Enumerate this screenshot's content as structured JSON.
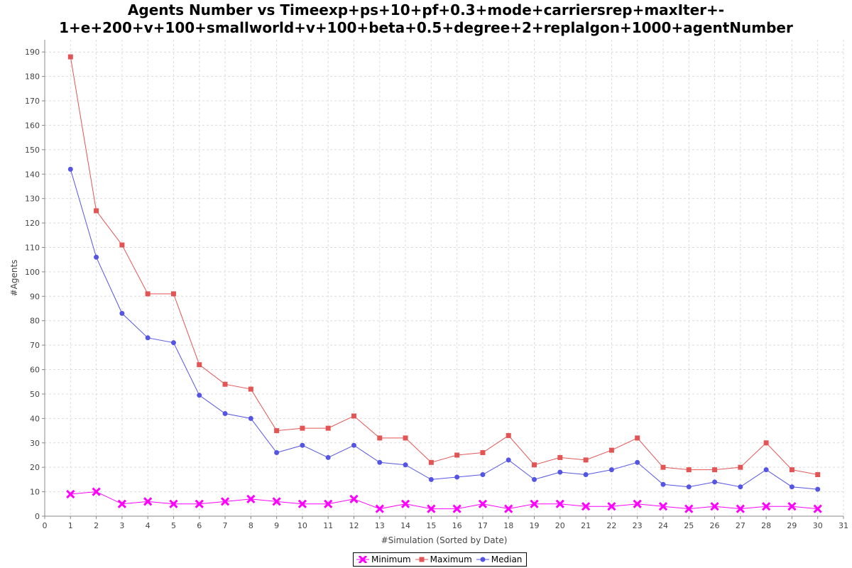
{
  "chart_data": {
    "type": "line",
    "title_line1": "Agents Number vs Timeexp+ps+10+pf+0.3+mode+carriersrep+maxIter+-",
    "title_line2": "1+e+200+v+100+smallworld+v+100+beta+0.5+degree+2+replalgon+1000+agentNumber",
    "xlabel": "#Simulation (Sorted by Date)",
    "ylabel": "#Agents",
    "xlim": [
      0,
      31
    ],
    "ylim": [
      0,
      195
    ],
    "xticks": [
      0,
      1,
      2,
      3,
      4,
      5,
      6,
      7,
      8,
      9,
      10,
      11,
      12,
      13,
      14,
      15,
      16,
      17,
      18,
      19,
      20,
      21,
      22,
      23,
      24,
      25,
      26,
      27,
      28,
      29,
      30,
      31
    ],
    "yticks": [
      0,
      10,
      20,
      30,
      40,
      50,
      60,
      70,
      80,
      90,
      100,
      110,
      120,
      130,
      140,
      150,
      160,
      170,
      180,
      190
    ],
    "grid": true,
    "legend_position": "bottom",
    "x": [
      1,
      2,
      3,
      4,
      5,
      6,
      7,
      8,
      9,
      10,
      11,
      12,
      13,
      14,
      15,
      16,
      17,
      18,
      19,
      20,
      21,
      22,
      23,
      24,
      25,
      26,
      27,
      28,
      29,
      30
    ],
    "series": [
      {
        "name": "Minimum",
        "color": "#ff00ff",
        "marker": "cross",
        "values": [
          9,
          10,
          5,
          6,
          5,
          5,
          6,
          7,
          6,
          5,
          5,
          7,
          3,
          5,
          3,
          3,
          5,
          3,
          5,
          5,
          4,
          4,
          5,
          4,
          3,
          4,
          3,
          4,
          4,
          3
        ]
      },
      {
        "name": "Maximum",
        "color": "#e35555",
        "marker": "square",
        "values": [
          188,
          125,
          111,
          91,
          91,
          62,
          54,
          52,
          35,
          36,
          36,
          41,
          32,
          32,
          22,
          25,
          26,
          33,
          21,
          24,
          23,
          27,
          32,
          20,
          19,
          19,
          20,
          30,
          19,
          17
        ]
      },
      {
        "name": "Median",
        "color": "#5555e3",
        "marker": "circle",
        "values": [
          142,
          106,
          83,
          73,
          71,
          49.5,
          42,
          40,
          26,
          29,
          24,
          29,
          22,
          21,
          15,
          16,
          17,
          23,
          15,
          18,
          17,
          19,
          22,
          13,
          12,
          14,
          12,
          19,
          12,
          11
        ]
      }
    ]
  }
}
